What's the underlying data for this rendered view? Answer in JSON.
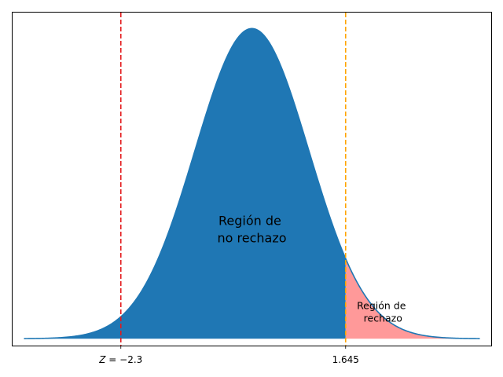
{
  "chart_data": {
    "type": "area",
    "title": "",
    "xlabel": "",
    "ylabel": "",
    "xlim": [
      -4.2,
      4.2
    ],
    "ylim": [
      -0.0088,
      0.4195
    ],
    "grid": false,
    "legend": "none",
    "series": [
      {
        "kind": "normal-pdf-curve",
        "mean": 0,
        "sd": 1,
        "x_range": [
          -4,
          4
        ],
        "color": "#1f77b4"
      }
    ],
    "fills": [
      {
        "role": "non-rejection",
        "x_from": -4,
        "x_to": 1.645,
        "color": "#1f77b4"
      },
      {
        "role": "rejection",
        "x_from": 1.645,
        "x_to": 4,
        "color": "#ff9999"
      }
    ],
    "vlines": [
      {
        "x": -2.3,
        "color": "#e31a1c",
        "style": "dashed",
        "label_parts": [
          "Z",
          " = −2.3"
        ]
      },
      {
        "x": 1.645,
        "color": "#ffa500",
        "style": "dashed",
        "label_parts": [
          "",
          "1.645"
        ]
      }
    ],
    "annotations": [
      {
        "lines": [
          "Región de",
          "no rechazo"
        ],
        "x": 0,
        "y": 0.135,
        "size": "large"
      },
      {
        "lines": [
          "Región de",
          "rechazo"
        ],
        "x": 2.3,
        "y": 0.03,
        "size": "small"
      }
    ]
  }
}
